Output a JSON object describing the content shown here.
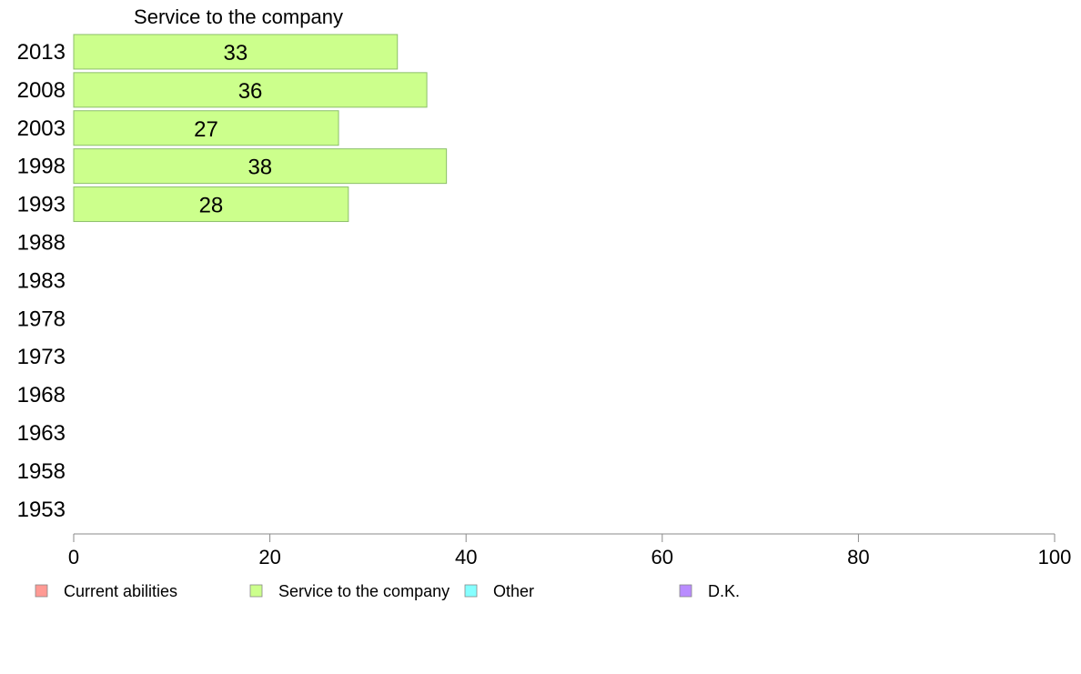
{
  "chart_data": {
    "type": "bar",
    "orientation": "horizontal",
    "title": "Service to the company",
    "categories": [
      "2013",
      "2008",
      "2003",
      "1998",
      "1993",
      "1988",
      "1983",
      "1978",
      "1973",
      "1968",
      "1963",
      "1958",
      "1953"
    ],
    "series": [
      {
        "name": "Current abilities",
        "values": [
          null,
          null,
          null,
          null,
          null,
          null,
          null,
          null,
          null,
          null,
          null,
          null,
          null
        ]
      },
      {
        "name": "Service to the company",
        "values": [
          33,
          36,
          27,
          38,
          28,
          null,
          null,
          null,
          null,
          null,
          null,
          null,
          null
        ]
      },
      {
        "name": "Other",
        "values": [
          null,
          null,
          null,
          null,
          null,
          null,
          null,
          null,
          null,
          null,
          null,
          null,
          null
        ]
      },
      {
        "name": "D.K.",
        "values": [
          null,
          null,
          null,
          null,
          null,
          null,
          null,
          null,
          null,
          null,
          null,
          null,
          null
        ]
      }
    ],
    "displayed_series": "Service to the company",
    "xlim": [
      0,
      100
    ],
    "x_ticks": [
      0,
      20,
      40,
      60,
      80,
      100
    ],
    "grid": false,
    "legend_position": "bottom",
    "colors": {
      "Current abilities": "#ff9a94",
      "Service to the company": "#ccff8c",
      "Other": "#85ffff",
      "D.K.": "#b98cff"
    },
    "bar_stroke": "#8cbf6a",
    "axis_color": "#8a8a8a"
  }
}
